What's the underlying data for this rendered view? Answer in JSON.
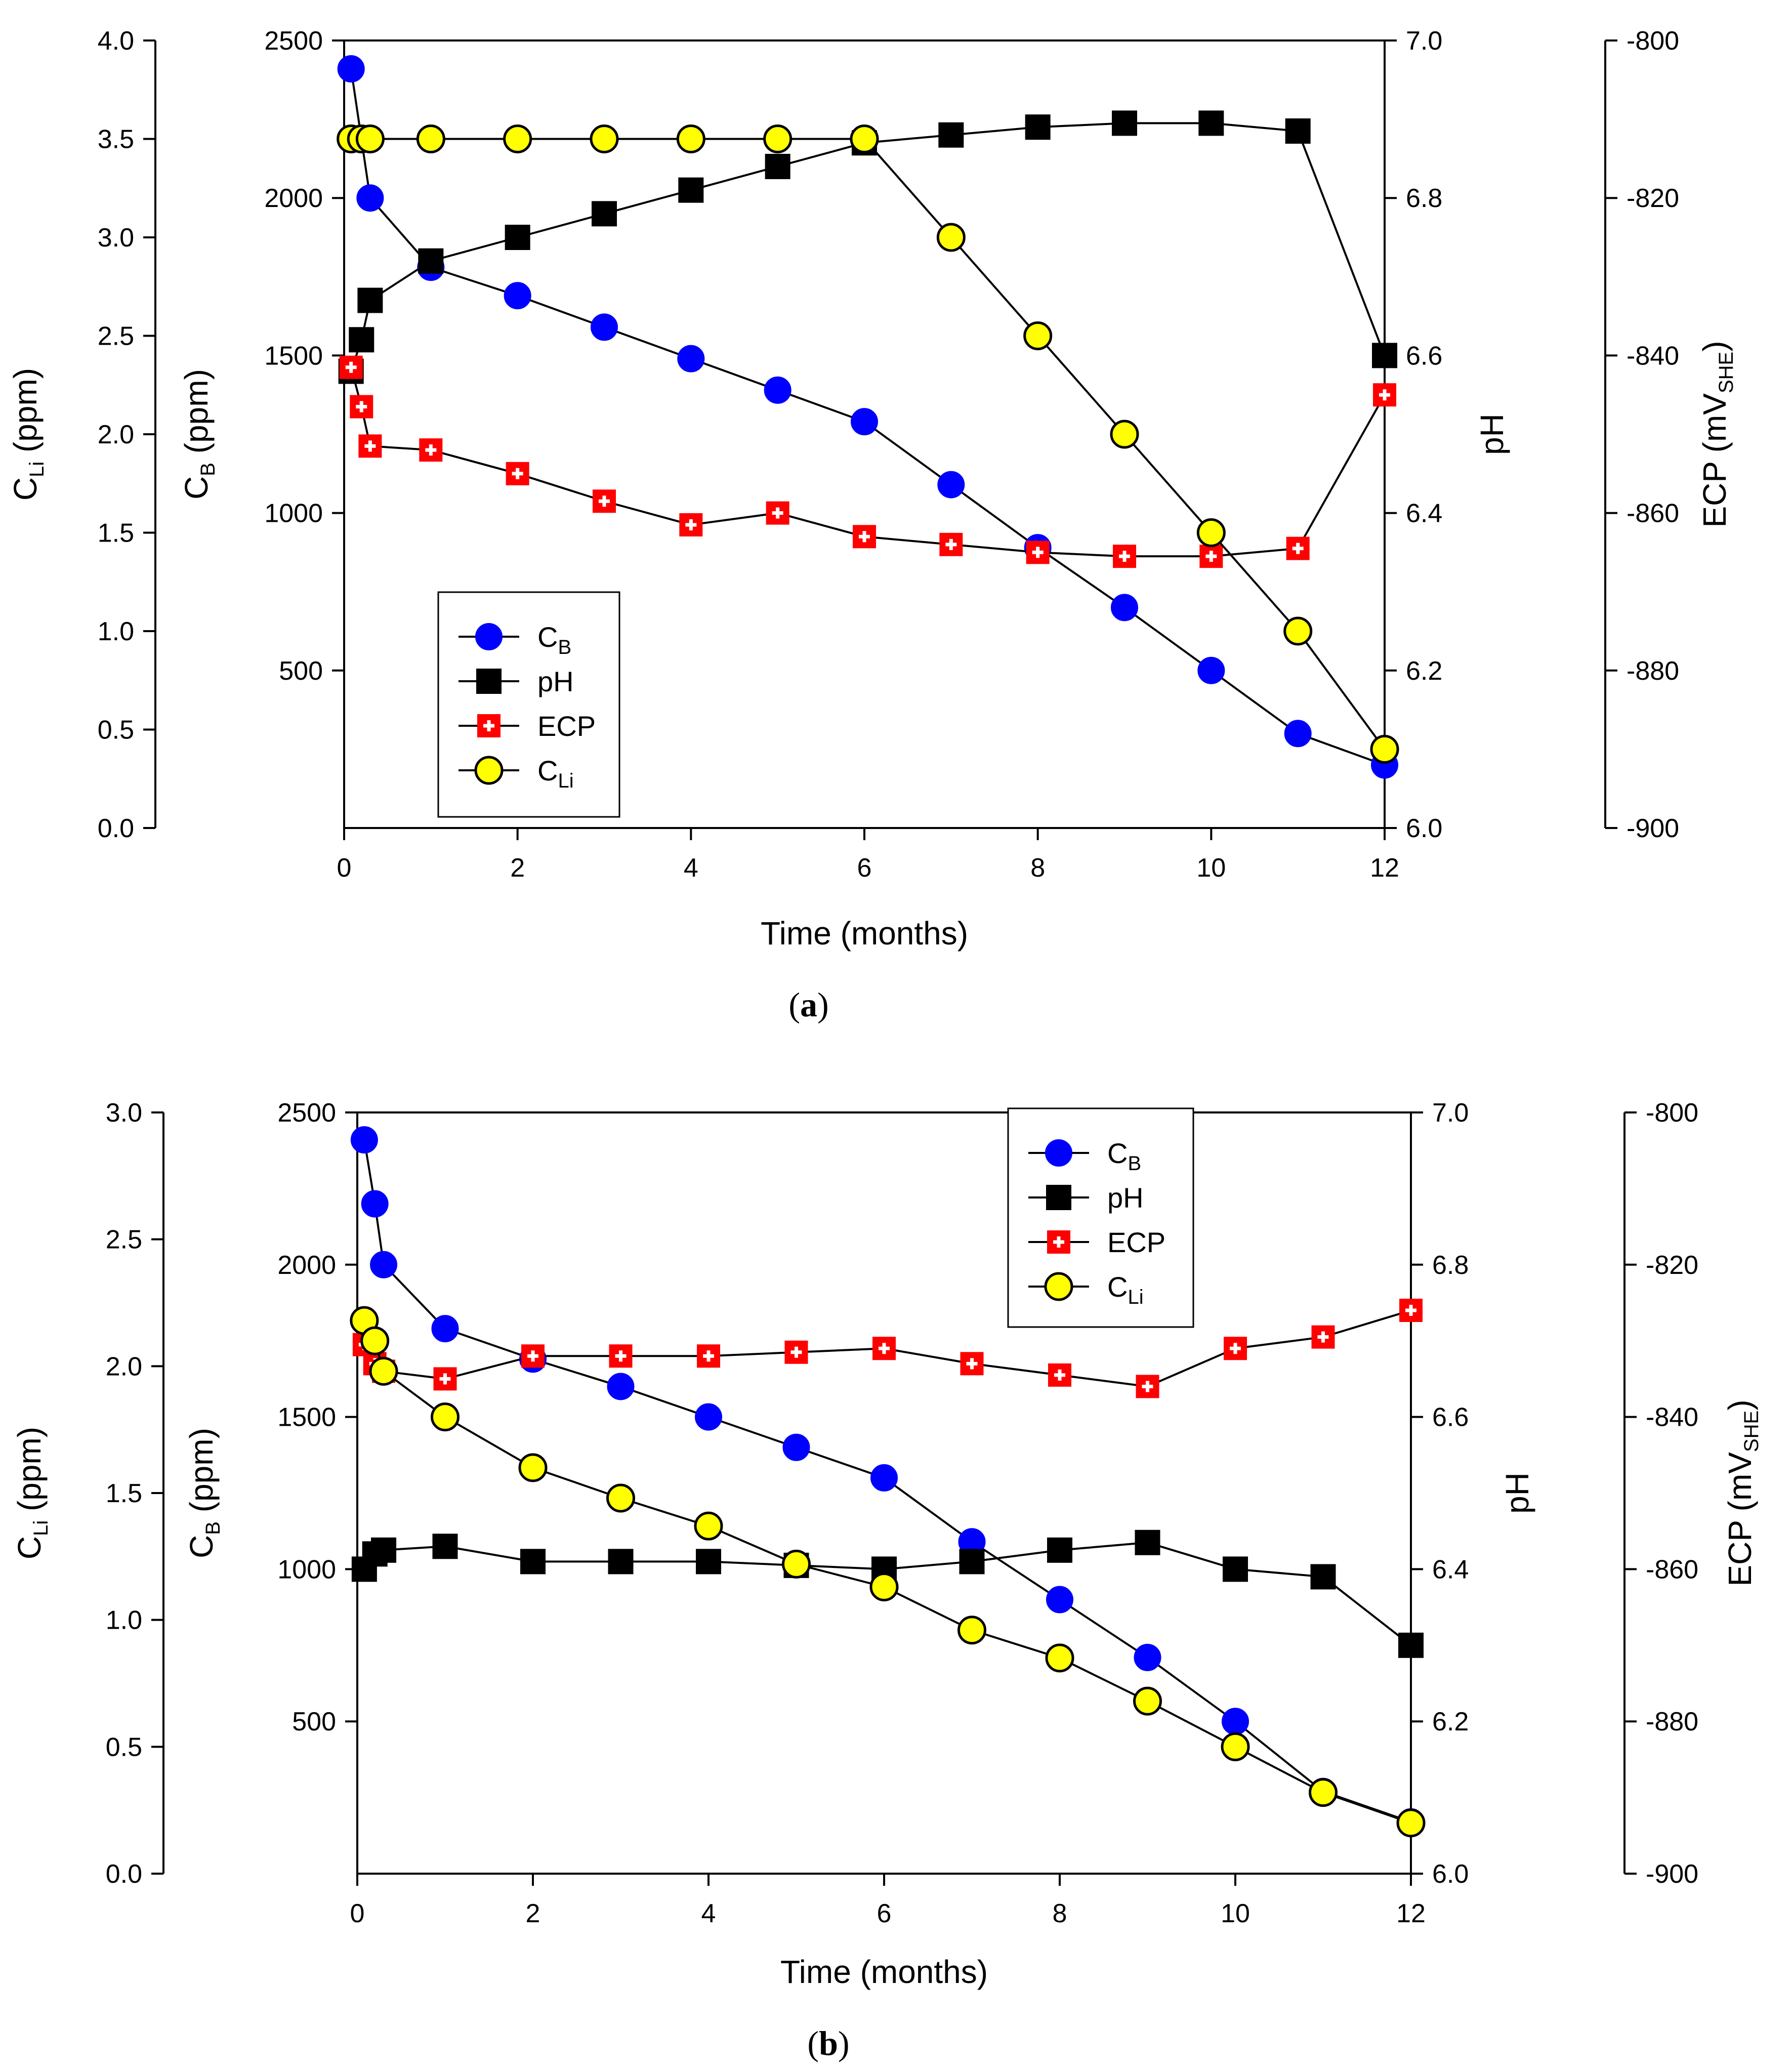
{
  "chart_data": [
    {
      "type": "line",
      "panel_label": "a",
      "xlabel": "Time (months)",
      "xlim": [
        0,
        12
      ],
      "xticks": [
        0,
        2,
        4,
        6,
        8,
        10,
        12
      ],
      "axes": {
        "cli": {
          "label_main": "C",
          "label_sub": "Li",
          "label_unit": " (ppm)",
          "lim": [
            0,
            4.0
          ],
          "ticks": [
            "0.0",
            "0.5",
            "1.0",
            "1.5",
            "2.0",
            "2.5",
            "3.0",
            "3.5",
            "4.0"
          ]
        },
        "cb": {
          "label_main": "C",
          "label_sub": "B",
          "label_unit": " (ppm)",
          "lim": [
            0,
            2500
          ],
          "ticks": [
            "500",
            "1000",
            "1500",
            "2000",
            "2500"
          ]
        },
        "ph": {
          "label": "pH",
          "lim": [
            6.0,
            7.0
          ],
          "ticks": [
            "6.0",
            "6.2",
            "6.4",
            "6.6",
            "6.8",
            "7.0"
          ]
        },
        "ecp": {
          "label_main": "ECP (mV",
          "label_sub": "SHE",
          "label_end": ")",
          "lim": [
            -900,
            -800
          ],
          "ticks": [
            "-900",
            "-880",
            "-860",
            "-840",
            "-820",
            "-800"
          ]
        }
      },
      "legend": {
        "position": "lower-left",
        "entries": [
          {
            "main": "C",
            "sub": "B",
            "key": "cb"
          },
          {
            "main": "pH",
            "sub": "",
            "key": "ph"
          },
          {
            "main": "ECP",
            "sub": "",
            "key": "ecp"
          },
          {
            "main": "C",
            "sub": "Li",
            "key": "cli"
          }
        ]
      },
      "series": [
        {
          "key": "cb",
          "axis": "cb",
          "marker": "circle",
          "color": "#0000ff",
          "x": [
            0.08,
            0.3,
            1,
            2,
            3,
            4,
            5,
            6,
            7,
            8,
            9,
            10,
            11,
            12
          ],
          "y": [
            2410,
            2000,
            1780,
            1690,
            1590,
            1490,
            1390,
            1290,
            1090,
            890,
            700,
            500,
            300,
            200
          ]
        },
        {
          "key": "ph",
          "axis": "ph",
          "marker": "square",
          "color": "#000000",
          "x": [
            0.08,
            0.2,
            0.3,
            1,
            2,
            3,
            4,
            5,
            6,
            7,
            8,
            9,
            10,
            11,
            12
          ],
          "y": [
            6.58,
            6.62,
            6.67,
            6.72,
            6.75,
            6.78,
            6.81,
            6.84,
            6.87,
            6.88,
            6.89,
            6.895,
            6.895,
            6.885,
            6.6
          ]
        },
        {
          "key": "ecp",
          "axis": "ecp",
          "marker": "cross-square",
          "color": "#ff0000",
          "x": [
            0.08,
            0.2,
            0.3,
            1,
            2,
            3,
            4,
            5,
            6,
            7,
            8,
            9,
            10,
            11,
            12
          ],
          "y": [
            -841.5,
            -846.5,
            -851.5,
            -852,
            -855,
            -858.5,
            -861.5,
            -860,
            -863,
            -864,
            -865,
            -865.5,
            -865.5,
            -864.5,
            -845
          ]
        },
        {
          "key": "cli",
          "axis": "cli",
          "marker": "circle-outline",
          "color": "#ffff00",
          "x": [
            0.08,
            0.2,
            0.3,
            1,
            2,
            3,
            4,
            5,
            6,
            7,
            8,
            9,
            10,
            11,
            12
          ],
          "y": [
            3.5,
            3.5,
            3.5,
            3.5,
            3.5,
            3.5,
            3.5,
            3.5,
            3.5,
            3.0,
            2.5,
            2.0,
            1.5,
            1.0,
            0.4
          ]
        }
      ]
    },
    {
      "type": "line",
      "panel_label": "b",
      "xlabel": "Time (months)",
      "xlim": [
        0,
        12
      ],
      "xticks": [
        0,
        2,
        4,
        6,
        8,
        10,
        12
      ],
      "axes": {
        "cli": {
          "label_main": "C",
          "label_sub": "Li",
          "label_unit": " (ppm)",
          "lim": [
            0,
            3.0
          ],
          "ticks": [
            "0.0",
            "0.5",
            "1.0",
            "1.5",
            "2.0",
            "2.5",
            "3.0"
          ]
        },
        "cb": {
          "label_main": "C",
          "label_sub": "B",
          "label_unit": " (ppm)",
          "lim": [
            0,
            2500
          ],
          "ticks": [
            "500",
            "1000",
            "1500",
            "2000",
            "2500"
          ]
        },
        "ph": {
          "label": "pH",
          "lim": [
            6.0,
            7.0
          ],
          "ticks": [
            "6.0",
            "6.2",
            "6.4",
            "6.6",
            "6.8",
            "7.0"
          ]
        },
        "ecp": {
          "label_main": "ECP (mV",
          "label_sub": "SHE",
          "label_end": ")",
          "lim": [
            -900,
            -800
          ],
          "ticks": [
            "-900",
            "-880",
            "-860",
            "-840",
            "-820",
            "-800"
          ]
        }
      },
      "legend": {
        "position": "top-right",
        "entries": [
          {
            "main": "C",
            "sub": "B",
            "key": "cb"
          },
          {
            "main": "pH",
            "sub": "",
            "key": "ph"
          },
          {
            "main": "ECP",
            "sub": "",
            "key": "ecp"
          },
          {
            "main": "C",
            "sub": "Li",
            "key": "cli"
          }
        ]
      },
      "series": [
        {
          "key": "cb",
          "axis": "cb",
          "marker": "circle",
          "color": "#0000ff",
          "x": [
            0.08,
            0.2,
            0.3,
            1,
            2,
            3,
            4,
            5,
            6,
            7,
            8,
            9,
            10,
            11,
            12
          ],
          "y": [
            2410,
            2200,
            2000,
            1790,
            1690,
            1600,
            1500,
            1400,
            1300,
            1090,
            900,
            710,
            500,
            270,
            170
          ]
        },
        {
          "key": "ph",
          "axis": "ph",
          "marker": "square",
          "color": "#000000",
          "x": [
            0.08,
            0.2,
            0.3,
            1,
            2,
            3,
            4,
            5,
            6,
            7,
            8,
            9,
            10,
            11,
            12
          ],
          "y": [
            6.4,
            6.42,
            6.425,
            6.43,
            6.41,
            6.41,
            6.41,
            6.405,
            6.4,
            6.41,
            6.425,
            6.435,
            6.4,
            6.39,
            6.3
          ]
        },
        {
          "key": "ecp",
          "axis": "ecp",
          "marker": "cross-square",
          "color": "#ff0000",
          "x": [
            0.08,
            0.2,
            0.3,
            1,
            2,
            3,
            4,
            5,
            6,
            7,
            8,
            9,
            10,
            11,
            12
          ],
          "y": [
            -830.5,
            -833,
            -834,
            -835,
            -832,
            -832,
            -832,
            -831.5,
            -831,
            -833,
            -834.5,
            -836,
            -831,
            -829.5,
            -826
          ]
        },
        {
          "key": "cli",
          "axis": "cli",
          "marker": "circle-outline",
          "color": "#ffff00",
          "x": [
            0.08,
            0.2,
            0.3,
            1,
            2,
            3,
            4,
            5,
            6,
            7,
            8,
            9,
            10,
            11,
            12
          ],
          "y": [
            2.18,
            2.1,
            1.98,
            1.8,
            1.6,
            1.48,
            1.37,
            1.22,
            1.13,
            0.96,
            0.85,
            0.68,
            0.5,
            0.32,
            0.2
          ]
        }
      ]
    }
  ]
}
